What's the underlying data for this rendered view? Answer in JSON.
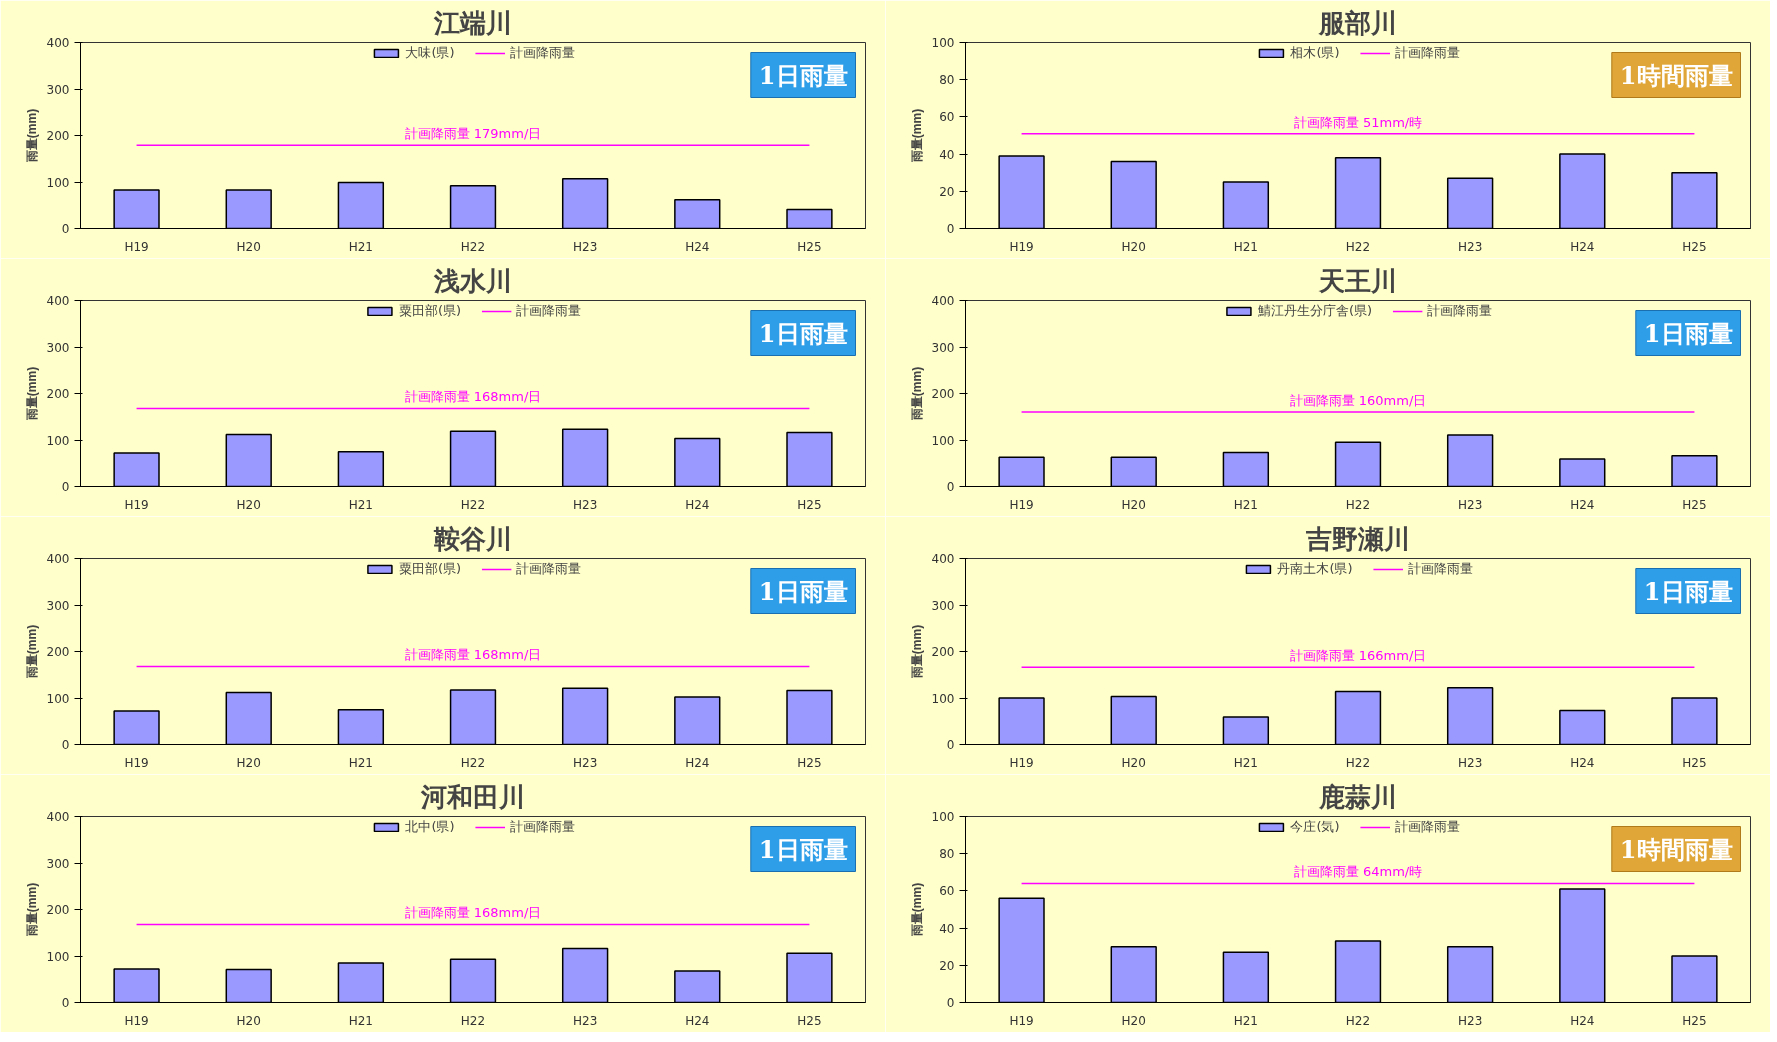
{
  "chart_data": [
    {
      "type": "bar",
      "title": "江端川",
      "ylabel": "雨量(mm)",
      "categories": [
        "H19",
        "H20",
        "H21",
        "H22",
        "H23",
        "H24",
        "H25"
      ],
      "ylim": [
        0,
        400
      ],
      "yticks": [
        0,
        100,
        200,
        300,
        400
      ],
      "legend": "top",
      "marker": "none",
      "series": [
        {
          "name": "大味(県)",
          "color": "#9999ff",
          "values": [
            83,
            83,
            99,
            92,
            107,
            62,
            41
          ]
        },
        {
          "name": "計画降雨量",
          "type": "line",
          "color": "#ff00ff",
          "values": [
            179,
            179,
            179,
            179,
            179,
            179,
            179
          ]
        }
      ],
      "annotations": [
        {
          "text": "計画降雨量 179mm/日",
          "y": 179
        },
        "1日雨量"
      ]
    },
    {
      "type": "bar",
      "title": "服部川",
      "ylabel": "雨量(mm)",
      "categories": [
        "H19",
        "H20",
        "H21",
        "H22",
        "H23",
        "H24",
        "H25"
      ],
      "ylim": [
        0,
        100
      ],
      "yticks": [
        0,
        20,
        40,
        60,
        80,
        100
      ],
      "legend": "top",
      "marker": "none",
      "series": [
        {
          "name": "相木(県)",
          "color": "#9999ff",
          "values": [
            39,
            36,
            25,
            38,
            27,
            40,
            30
          ]
        },
        {
          "name": "計画降雨量",
          "type": "line",
          "color": "#ff00ff",
          "values": [
            51,
            51,
            51,
            51,
            51,
            51,
            51
          ]
        }
      ],
      "annotations": [
        {
          "text": "計画降雨量 51mm/時",
          "y": 51
        },
        "1時間雨量"
      ]
    },
    {
      "type": "bar",
      "title": "浅水川",
      "ylabel": "雨量(mm)",
      "categories": [
        "H19",
        "H20",
        "H21",
        "H22",
        "H23",
        "H24",
        "H25"
      ],
      "ylim": [
        0,
        400
      ],
      "yticks": [
        0,
        100,
        200,
        300,
        400
      ],
      "legend": "top",
      "marker": "none",
      "series": [
        {
          "name": "粟田部(県)",
          "color": "#9999ff",
          "values": [
            72,
            112,
            75,
            119,
            123,
            103,
            116
          ]
        },
        {
          "name": "計画降雨量",
          "type": "line",
          "color": "#ff00ff",
          "values": [
            168,
            168,
            168,
            168,
            168,
            168,
            168
          ]
        }
      ],
      "annotations": [
        {
          "text": "計画降雨量 168mm/日",
          "y": 168
        },
        "1日雨量"
      ]
    },
    {
      "type": "bar",
      "title": "天王川",
      "ylabel": "雨量(mm)",
      "categories": [
        "H19",
        "H20",
        "H21",
        "H22",
        "H23",
        "H24",
        "H25"
      ],
      "ylim": [
        0,
        400
      ],
      "yticks": [
        0,
        100,
        200,
        300,
        400
      ],
      "legend": "top",
      "marker": "none",
      "series": [
        {
          "name": "鯖江丹生分庁舎(県)",
          "color": "#9999ff",
          "values": [
            63,
            63,
            73,
            95,
            111,
            59,
            66
          ]
        },
        {
          "name": "計画降雨量",
          "type": "line",
          "color": "#ff00ff",
          "values": [
            160,
            160,
            160,
            160,
            160,
            160,
            160
          ]
        }
      ],
      "annotations": [
        {
          "text": "計画降雨量 160mm/日",
          "y": 160
        },
        "1日雨量"
      ]
    },
    {
      "type": "bar",
      "title": "鞍谷川",
      "ylabel": "雨量(mm)",
      "categories": [
        "H19",
        "H20",
        "H21",
        "H22",
        "H23",
        "H24",
        "H25"
      ],
      "ylim": [
        0,
        400
      ],
      "yticks": [
        0,
        100,
        200,
        300,
        400
      ],
      "legend": "top",
      "marker": "none",
      "series": [
        {
          "name": "粟田部(県)",
          "color": "#9999ff",
          "values": [
            72,
            112,
            75,
            117,
            121,
            102,
            116
          ]
        },
        {
          "name": "計画降雨量",
          "type": "line",
          "color": "#ff00ff",
          "values": [
            168,
            168,
            168,
            168,
            168,
            168,
            168
          ]
        }
      ],
      "annotations": [
        {
          "text": "計画降雨量 168mm/日",
          "y": 168
        },
        "1日雨量"
      ]
    },
    {
      "type": "bar",
      "title": "吉野瀬川",
      "ylabel": "雨量(mm)",
      "categories": [
        "H19",
        "H20",
        "H21",
        "H22",
        "H23",
        "H24",
        "H25"
      ],
      "ylim": [
        0,
        400
      ],
      "yticks": [
        0,
        100,
        200,
        300,
        400
      ],
      "legend": "top",
      "marker": "none",
      "series": [
        {
          "name": "丹南土木(県)",
          "color": "#9999ff",
          "values": [
            100,
            103,
            59,
            114,
            122,
            73,
            100
          ]
        },
        {
          "name": "計画降雨量",
          "type": "line",
          "color": "#ff00ff",
          "values": [
            166,
            166,
            166,
            166,
            166,
            166,
            166
          ]
        }
      ],
      "annotations": [
        {
          "text": "計画降雨量 166mm/日",
          "y": 166
        },
        "1日雨量"
      ]
    },
    {
      "type": "bar",
      "title": "河和田川",
      "ylabel": "雨量(mm)",
      "categories": [
        "H19",
        "H20",
        "H21",
        "H22",
        "H23",
        "H24",
        "H25"
      ],
      "ylim": [
        0,
        400
      ],
      "yticks": [
        0,
        100,
        200,
        300,
        400
      ],
      "legend": "top",
      "marker": "none",
      "series": [
        {
          "name": "北中(県)",
          "color": "#9999ff",
          "values": [
            72,
            71,
            85,
            93,
            116,
            68,
            106
          ]
        },
        {
          "name": "計画降雨量",
          "type": "line",
          "color": "#ff00ff",
          "values": [
            168,
            168,
            168,
            168,
            168,
            168,
            168
          ]
        }
      ],
      "annotations": [
        {
          "text": "計画降雨量 168mm/日",
          "y": 168
        },
        "1日雨量"
      ]
    },
    {
      "type": "bar",
      "title": "鹿蒜川",
      "ylabel": "雨量(mm)",
      "categories": [
        "H19",
        "H20",
        "H21",
        "H22",
        "H23",
        "H24",
        "H25"
      ],
      "ylim": [
        0,
        100
      ],
      "yticks": [
        0,
        20,
        40,
        60,
        80,
        100
      ],
      "legend": "top",
      "marker": "none",
      "series": [
        {
          "name": "今庄(気)",
          "color": "#9999ff",
          "values": [
            56,
            30,
            27,
            33,
            30,
            61,
            25
          ]
        },
        {
          "name": "計画降雨量",
          "type": "line",
          "color": "#ff00ff",
          "values": [
            64,
            64,
            64,
            64,
            64,
            64,
            64
          ]
        }
      ],
      "annotations": [
        {
          "text": "計画降雨量 64mm/時",
          "y": 64
        },
        "1時間雨量"
      ]
    }
  ]
}
